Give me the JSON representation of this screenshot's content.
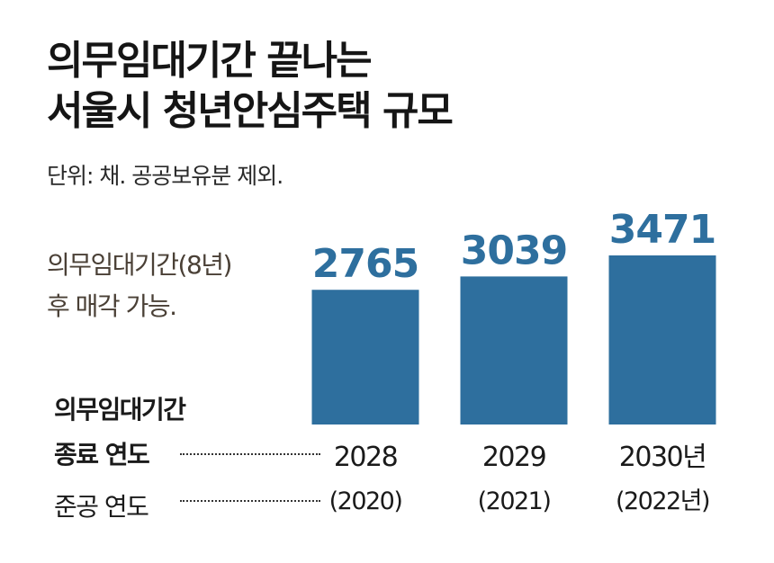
{
  "title_line1": "의무임대기간 끝나는",
  "title_line2": "서울시 청년안심주택 규모",
  "unit_note": "단위: 채. 공공보유분 제외.",
  "annotation_line1": "의무임대기간(8년)",
  "annotation_line2": "후 매각 가능.",
  "row1_label_line1": "의무임대기간",
  "row1_label_line2": "종료 연도",
  "row2_label": "준공 연도",
  "colors": {
    "bar": "#2e6f9e",
    "value_label": "#2e6f9e",
    "text": "#1a1a1a",
    "note": "#4a4036"
  },
  "chart_data": {
    "type": "bar",
    "categories": [
      "2028",
      "2029",
      "2030년"
    ],
    "secondary_categories": [
      "(2020)",
      "(2021)",
      "(2022년)"
    ],
    "values": [
      2765,
      3039,
      3471
    ],
    "ylim": [
      0,
      3471
    ],
    "grid": false,
    "legend": "none"
  }
}
